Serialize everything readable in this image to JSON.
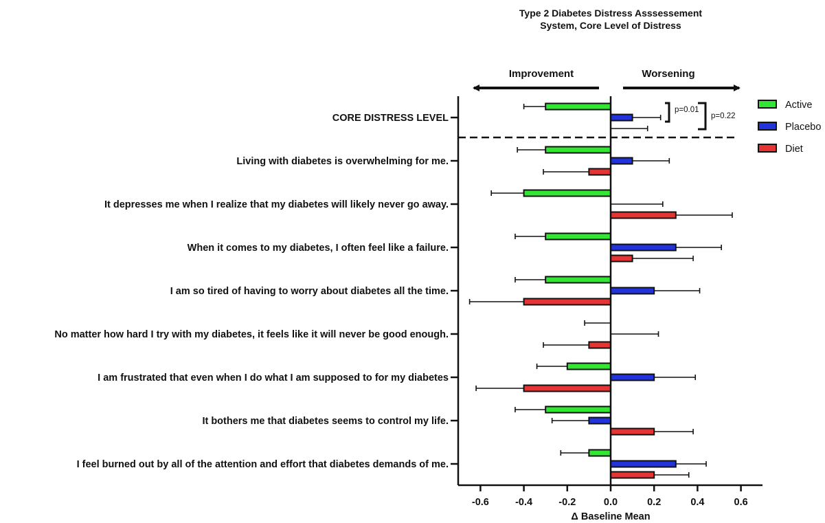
{
  "chart_data": {
    "type": "bar",
    "orientation": "horizontal",
    "title_lines": [
      "Type 2 Diabetes Distress Asssessement",
      "System, Core Level of Distress"
    ],
    "xlabel": "Δ Baseline Mean",
    "xlim": [
      -0.7,
      0.7
    ],
    "xticks": [
      -0.6,
      -0.4,
      -0.2,
      0.0,
      0.2,
      0.4,
      0.6
    ],
    "xtick_labels": [
      "-0.6",
      "-0.4",
      "-0.2",
      "0.0",
      "0.2",
      "0.4",
      "0.6"
    ],
    "direction_labels": {
      "left": "Improvement",
      "right": "Worsening"
    },
    "categories": [
      "CORE DISTRESS LEVEL",
      "Living with diabetes is overwhelming for me.",
      "It depresses me when I realize that my diabetes will likely never go away.",
      "When it comes to my diabetes, I often feel like a failure.",
      "I am so tired of having to worry about diabetes all the time.",
      "No matter how hard I try with my diabetes, it feels like it will never be good enough.",
      "I am frustrated that even when I do what I am supposed to for my diabetes",
      "It bothers me that diabetes seems to control my life.",
      "I feel burned out by all of the attention and effort that diabetes demands of me."
    ],
    "series": [
      {
        "name": "Active",
        "color": "#33e633",
        "values": [
          -0.3,
          -0.3,
          -0.4,
          -0.3,
          -0.3,
          0.0,
          -0.2,
          -0.3,
          -0.1
        ],
        "error": [
          0.1,
          0.13,
          0.15,
          0.14,
          0.14,
          0.12,
          0.14,
          0.14,
          0.13
        ]
      },
      {
        "name": "Placebo",
        "color": "#2233dd",
        "values": [
          0.1,
          0.1,
          0.0,
          0.3,
          0.2,
          0.0,
          0.2,
          -0.1,
          0.3
        ],
        "error": [
          0.13,
          0.17,
          0.24,
          0.21,
          0.21,
          0.22,
          0.19,
          0.17,
          0.14
        ]
      },
      {
        "name": "Diet",
        "color": "#e63333",
        "values": [
          0.0,
          -0.1,
          0.3,
          0.1,
          -0.4,
          -0.1,
          -0.4,
          0.2,
          0.2
        ],
        "error": [
          0.17,
          0.21,
          0.26,
          0.28,
          0.25,
          0.21,
          0.22,
          0.18,
          0.16
        ]
      }
    ],
    "annotations": [
      {
        "text": "p=0.01",
        "between": [
          "Active",
          "Placebo"
        ],
        "category": "CORE DISTRESS LEVEL"
      },
      {
        "text": "p=0.22",
        "between": [
          "Active",
          "Diet"
        ],
        "category": "CORE DISTRESS LEVEL"
      }
    ],
    "legend_position": "right",
    "grid": false
  }
}
